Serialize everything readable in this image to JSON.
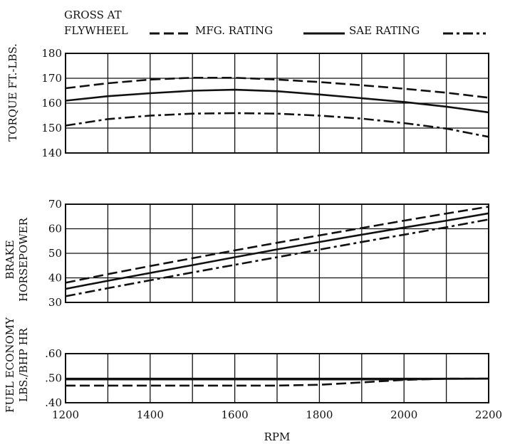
{
  "legend": {
    "line1": "GROSS AT",
    "items": [
      {
        "label": "FLYWHEEL",
        "style": "dashed"
      },
      {
        "label": "MFG. RATING",
        "style": "solid"
      },
      {
        "label": "SAE RATING",
        "style": "dashdot"
      }
    ]
  },
  "colors": {
    "ink": "#111111",
    "paper": "#ffffff"
  },
  "chart_data": [
    {
      "type": "line",
      "ylabel": "TORQUE FT.-LBS.",
      "xlim": [
        1200,
        2200
      ],
      "ylim": [
        140,
        180
      ],
      "yticks": [
        140,
        150,
        160,
        170,
        180
      ],
      "ytick_labels": [
        "140",
        "150",
        "160",
        "170",
        "180"
      ],
      "grid": true,
      "x": [
        1200,
        1300,
        1400,
        1500,
        1600,
        1700,
        1800,
        1900,
        2000,
        2100,
        2200
      ],
      "series": [
        {
          "name": "FLYWHEEL",
          "style": "dashed",
          "values": [
            166,
            168,
            169.5,
            170.2,
            170.2,
            169.5,
            168.5,
            167.2,
            165.8,
            164.2,
            162.2
          ]
        },
        {
          "name": "MFG. RATING",
          "style": "solid",
          "values": [
            161,
            162.8,
            164,
            165,
            165.4,
            164.8,
            163.5,
            162,
            160.5,
            158.6,
            156.3
          ]
        },
        {
          "name": "SAE RATING",
          "style": "dashdot",
          "values": [
            151,
            153.6,
            155,
            155.8,
            156,
            155.8,
            155,
            153.8,
            152,
            149.8,
            146.5
          ]
        }
      ]
    },
    {
      "type": "line",
      "ylabel": "BRAKE HORSEPOWER",
      "xlim": [
        1200,
        2200
      ],
      "ylim": [
        30,
        70
      ],
      "yticks": [
        30,
        40,
        50,
        60,
        70
      ],
      "ytick_labels": [
        "30",
        "40",
        "50",
        "60",
        "70"
      ],
      "grid": true,
      "x": [
        1200,
        1300,
        1400,
        1500,
        1600,
        1700,
        1800,
        1900,
        2000,
        2100,
        2200
      ],
      "series": [
        {
          "name": "FLYWHEEL",
          "style": "dashed",
          "values": [
            38,
            41.5,
            44.8,
            48,
            51.2,
            54.3,
            57.3,
            60.3,
            63.3,
            66.2,
            69
          ]
        },
        {
          "name": "MFG. RATING",
          "style": "solid",
          "values": [
            35.5,
            38.8,
            42,
            45.2,
            48.4,
            51.6,
            54.6,
            57.6,
            60.5,
            63.3,
            66.3
          ]
        },
        {
          "name": "SAE RATING",
          "style": "dashdot",
          "values": [
            32.5,
            35.8,
            39,
            42.2,
            45.3,
            48.4,
            51.5,
            54.6,
            57.6,
            60.6,
            63.8
          ]
        }
      ]
    },
    {
      "type": "line",
      "ylabel": "FUEL ECONOMY LBS./BHP HR",
      "xlabel": "RPM",
      "xlim": [
        1200,
        2200
      ],
      "ylim": [
        0.4,
        0.6
      ],
      "yticks": [
        0.4,
        0.5,
        0.6
      ],
      "ytick_labels": [
        ".40",
        ".50",
        ".60"
      ],
      "xticks": [
        1200,
        1400,
        1600,
        1800,
        2000,
        2200
      ],
      "xtick_labels": [
        "1200",
        "1400",
        "1600",
        "1800",
        "2000",
        "2200"
      ],
      "grid": true,
      "x": [
        1200,
        1300,
        1400,
        1500,
        1600,
        1700,
        1800,
        1900,
        2000,
        2100,
        2200
      ],
      "series": [
        {
          "name": "MFG. RATING",
          "style": "solid",
          "values": [
            0.495,
            0.495,
            0.495,
            0.495,
            0.495,
            0.495,
            0.495,
            0.495,
            0.495,
            0.497,
            0.498
          ]
        },
        {
          "name": "FLYWHEEL",
          "style": "dashed",
          "values": [
            0.47,
            0.47,
            0.47,
            0.47,
            0.47,
            0.47,
            0.473,
            0.483,
            0.493,
            0.498,
            0.498
          ]
        }
      ]
    }
  ]
}
